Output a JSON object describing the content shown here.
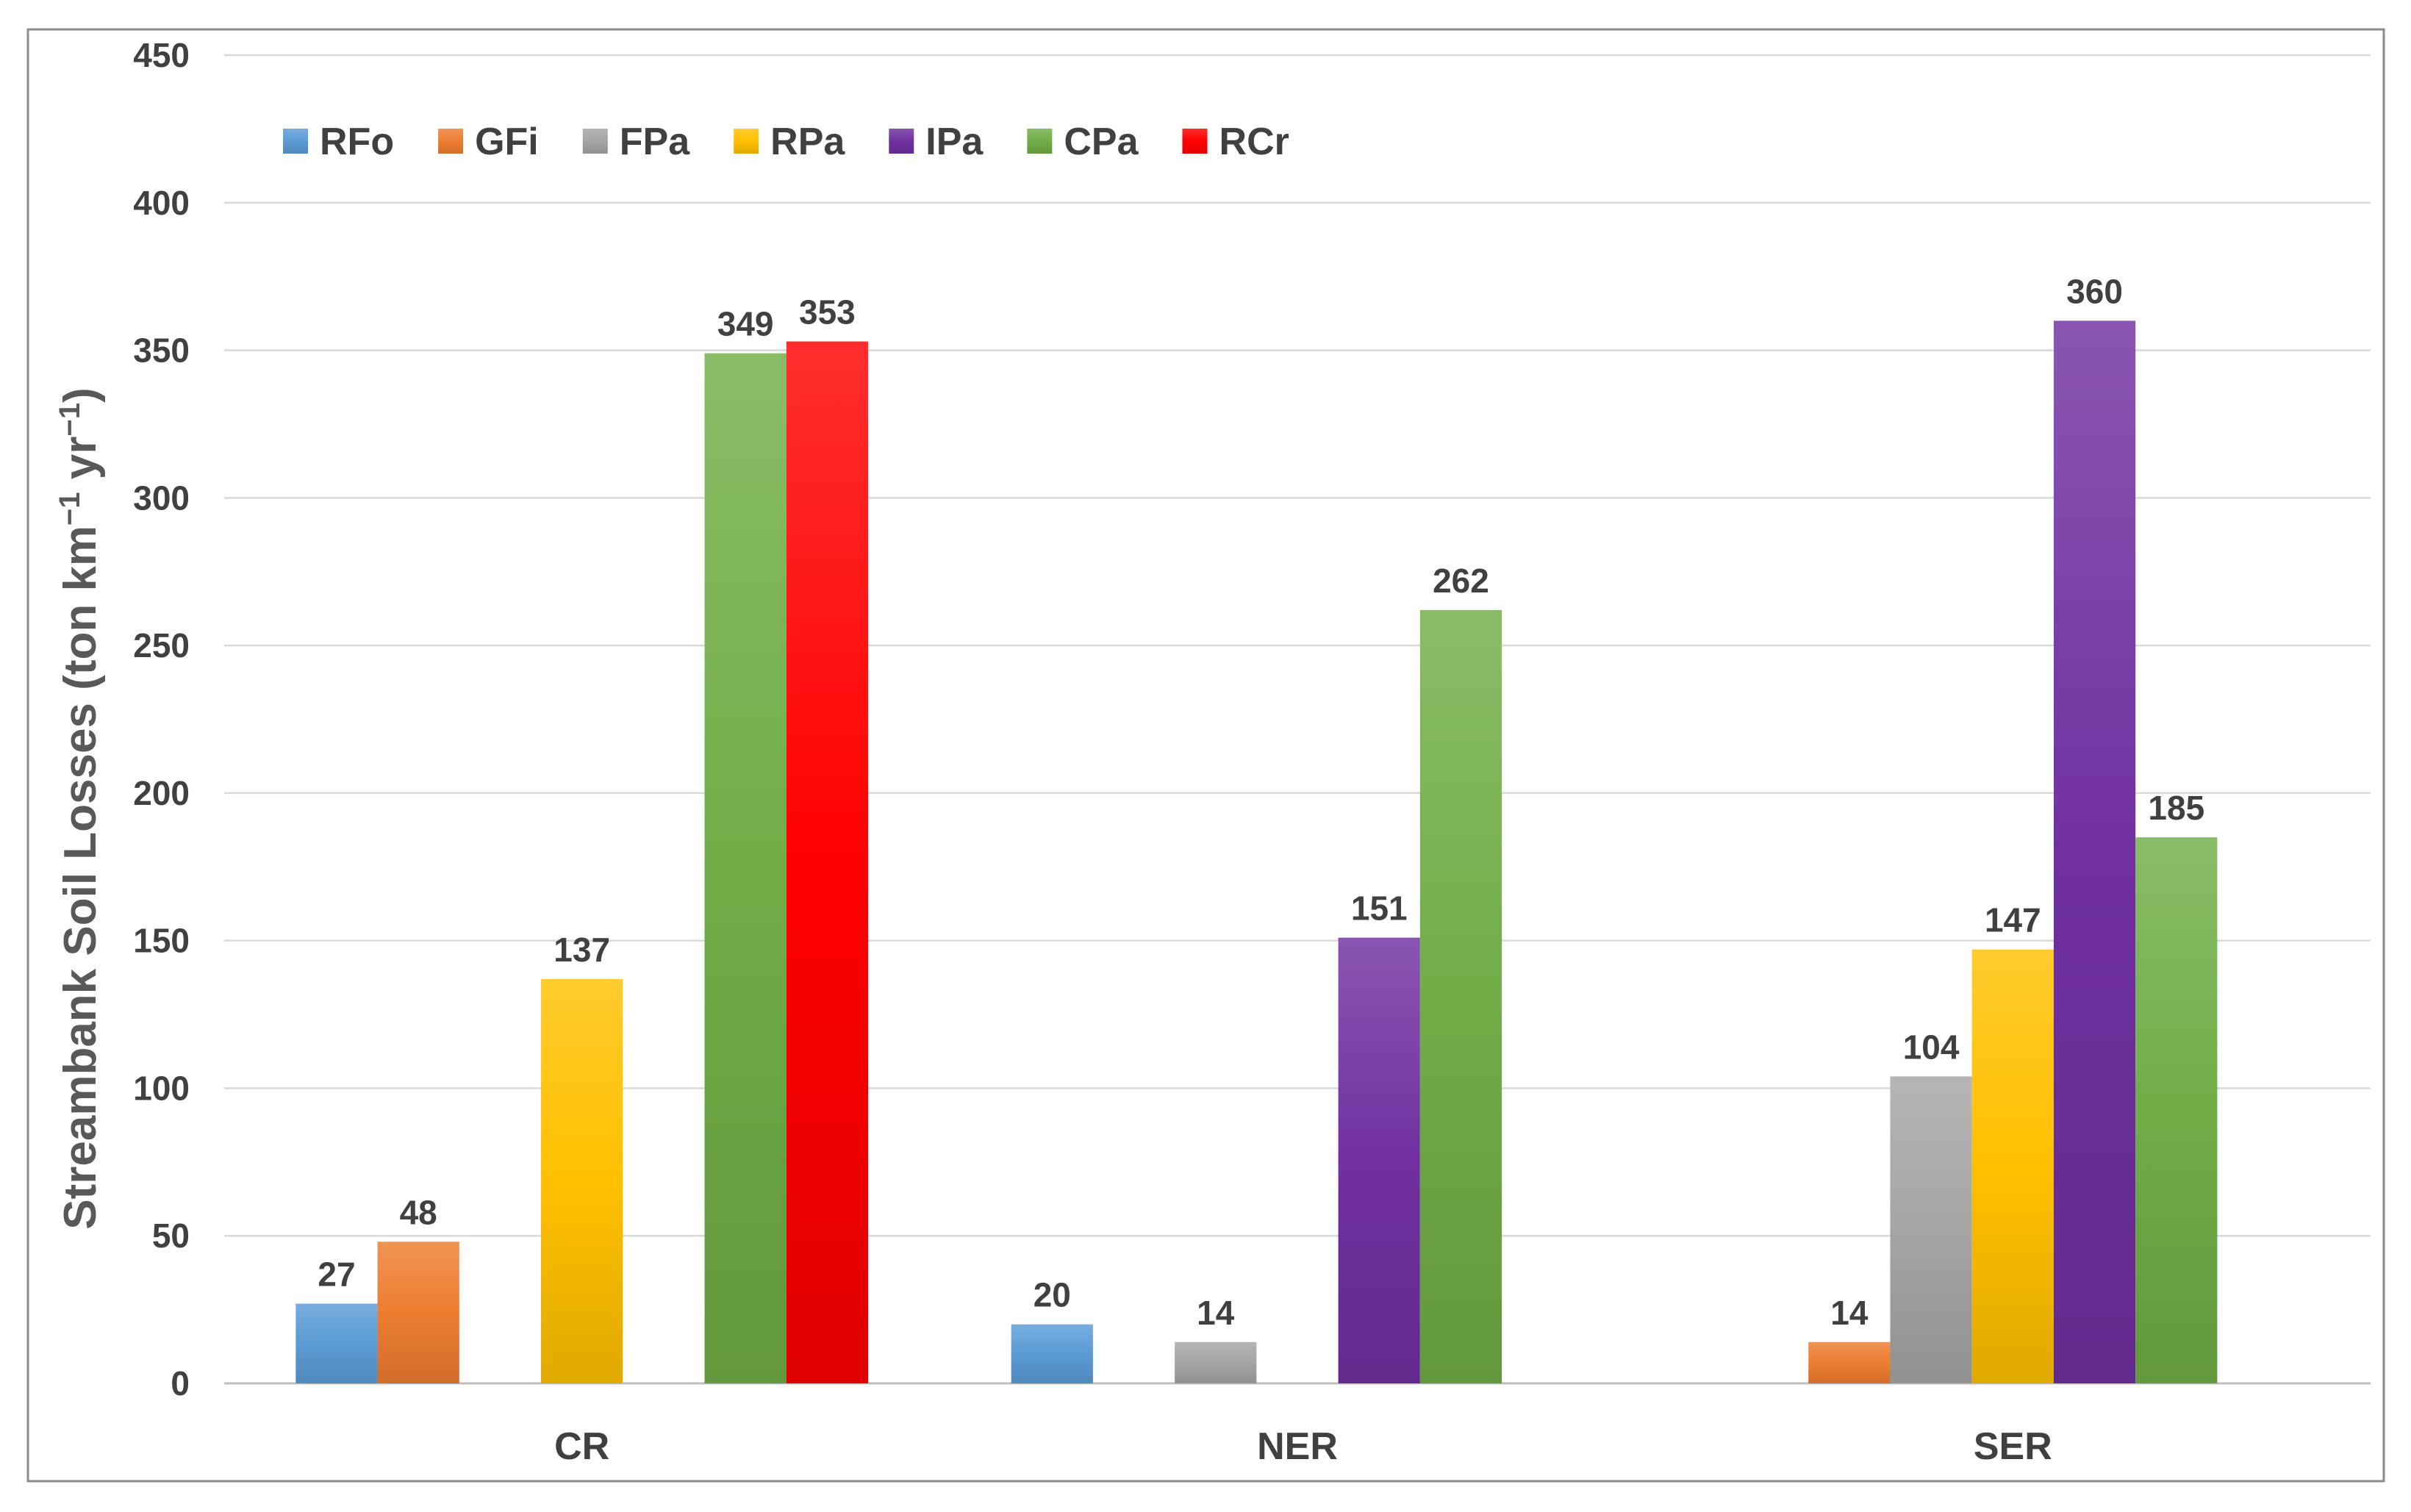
{
  "chart_data": {
    "type": "bar",
    "ylabel": "Streambank Soil Losses (ton km",
    "ylabel_unit_sup": "−1",
    "ylabel_mid": " yr",
    "ylabel_end": ")",
    "ylim": [
      0,
      450
    ],
    "yticks": [
      0,
      50,
      100,
      150,
      200,
      250,
      300,
      350,
      400,
      450
    ],
    "grid": true,
    "legend_position": "top-left",
    "categories": [
      "CR",
      "NER",
      "SER"
    ],
    "series": [
      {
        "name": "RFo",
        "color": "#5B9BD5",
        "values": [
          27,
          20,
          null
        ]
      },
      {
        "name": "GFi",
        "color": "#ED7D31",
        "values": [
          48,
          null,
          14
        ]
      },
      {
        "name": "FPa",
        "color": "#A5A5A5",
        "values": [
          null,
          14,
          104
        ]
      },
      {
        "name": "RPa",
        "color": "#FFC000",
        "values": [
          137,
          null,
          147
        ]
      },
      {
        "name": "IPa",
        "color": "#7030A0",
        "values": [
          null,
          151,
          360
        ]
      },
      {
        "name": "CPa",
        "color": "#70AD47",
        "values": [
          349,
          262,
          185
        ]
      },
      {
        "name": "RCr",
        "color": "#FF0000",
        "values": [
          353,
          null,
          null
        ]
      }
    ]
  }
}
